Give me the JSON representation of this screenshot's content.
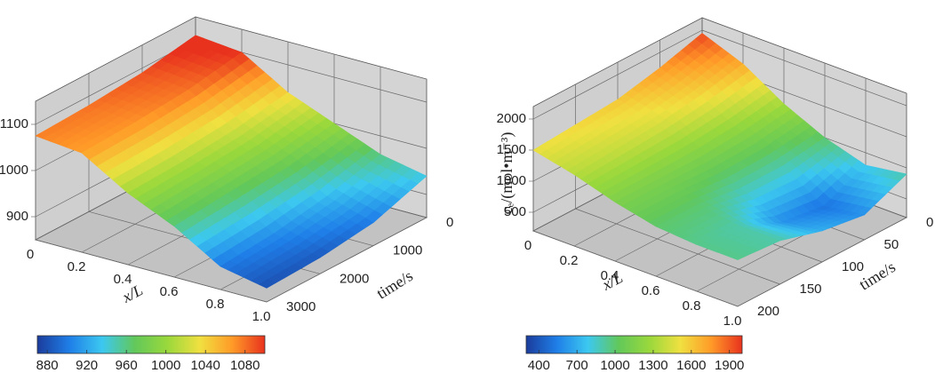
{
  "chart_data": [
    {
      "type": "surface",
      "xlabel": "x/L",
      "tlabel": "time/s",
      "x": [
        0,
        0.2,
        0.4,
        0.6,
        0.8,
        1.0
      ],
      "time": [
        0,
        1000,
        2000,
        3000
      ],
      "z": [
        [
          1110,
          1100,
          1040,
          1000,
          960,
          940
        ],
        [
          1090,
          1080,
          1020,
          980,
          930,
          900
        ],
        [
          1080,
          1070,
          1010,
          970,
          910,
          885
        ],
        [
          1075,
          1065,
          1005,
          960,
          900,
          880
        ]
      ],
      "xlim": [
        0,
        1
      ],
      "xticks": [
        0,
        0.2,
        0.4,
        0.6,
        0.8,
        {
          "value": 1,
          "label": "1.0"
        }
      ],
      "tlim": [
        0,
        3000
      ],
      "tticks": [
        0,
        1000,
        2000,
        3000
      ],
      "zlim": [
        850,
        1150
      ],
      "zticks": [
        900,
        1000,
        1100
      ],
      "clim": [
        870,
        1100
      ],
      "cticks": [
        880,
        920,
        960,
        1000,
        1040,
        1080
      ],
      "colormap": [
        "#1b3c9c",
        "#1f7fe8",
        "#3cc8f0",
        "#62c85a",
        "#9ad83c",
        "#f0e040",
        "#ff9a28",
        "#e8321e"
      ],
      "grid": true
    },
    {
      "type": "surface",
      "zlabel": "cₑ/(mol•m⁻³)",
      "xlabel": "x/L",
      "tlabel": "time/s",
      "x": [
        0,
        0.2,
        0.4,
        0.6,
        0.8,
        1.0
      ],
      "time": [
        0,
        50,
        100,
        150,
        200
      ],
      "z": [
        [
          1950,
          1700,
          1300,
          1000,
          800,
          900
        ],
        [
          1750,
          1550,
          1200,
          900,
          500,
          600
        ],
        [
          1600,
          1450,
          1150,
          900,
          600,
          700
        ],
        [
          1550,
          1400,
          1150,
          1000,
          900,
          900
        ],
        [
          1500,
          1350,
          1150,
          1000,
          950,
          950
        ]
      ],
      "xlim": [
        0,
        1
      ],
      "xticks": [
        0,
        0.2,
        0.4,
        0.6,
        0.8,
        {
          "value": 1,
          "label": "1.0"
        }
      ],
      "tlim": [
        0,
        200
      ],
      "tticks": [
        0,
        50,
        100,
        150,
        200
      ],
      "zlim": [
        200,
        2200
      ],
      "zticks": [
        500,
        1000,
        1500,
        2000
      ],
      "clim": [
        300,
        2000
      ],
      "cticks": [
        400,
        700,
        1000,
        1300,
        1600,
        1900
      ],
      "colormap": [
        "#1b3c9c",
        "#1f7fe8",
        "#3cc8f0",
        "#62c85a",
        "#9ad83c",
        "#f0e040",
        "#ff9a28",
        "#e8321e"
      ],
      "grid": true
    }
  ]
}
